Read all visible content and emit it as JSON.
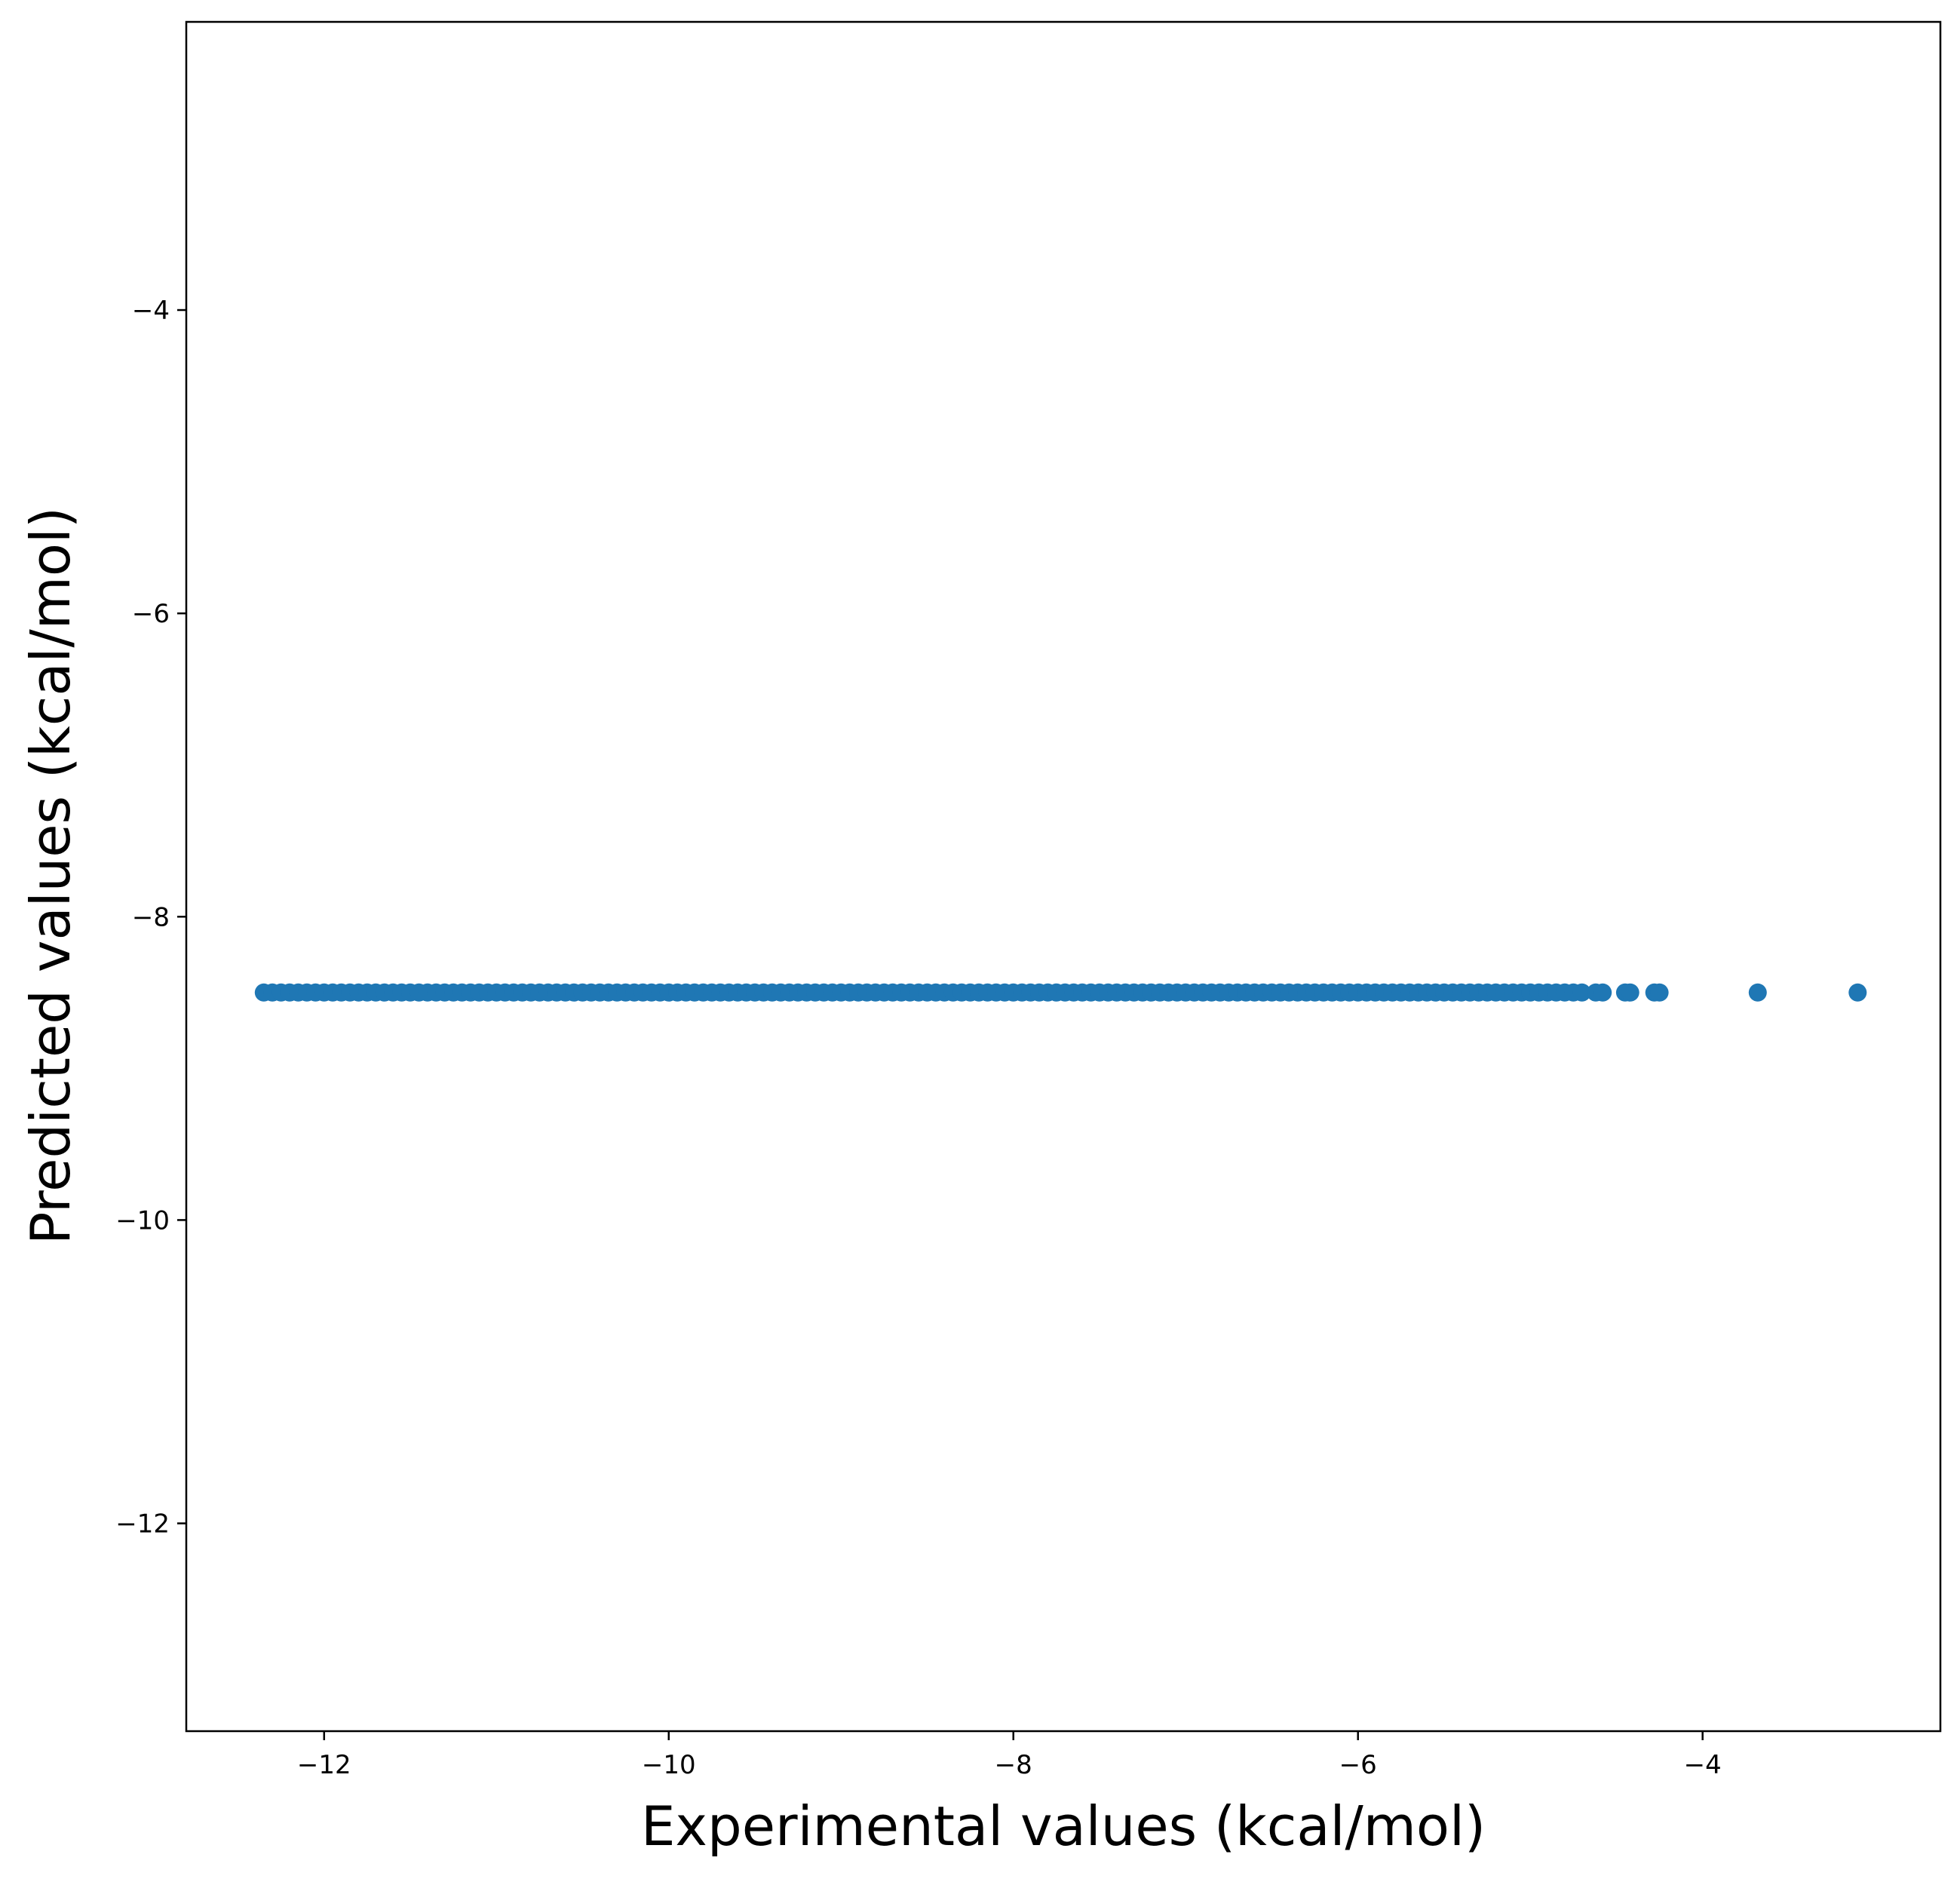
{
  "chart_data": {
    "type": "scatter",
    "title": "",
    "xlabel": "Experimental values (kcal/mol)",
    "ylabel": "Predicted values (kcal/mol)",
    "xlim": [
      -12.8,
      -2.62
    ],
    "ylim": [
      -13.37,
      -2.1
    ],
    "x_ticks": [
      -12,
      -10,
      -8,
      -6,
      -4
    ],
    "x_tick_labels": [
      "−12",
      "−10",
      "−8",
      "−6",
      "−4"
    ],
    "y_ticks": [
      -12,
      -10,
      -8,
      -6,
      -4
    ],
    "y_tick_labels": [
      "−12",
      "−10",
      "−8",
      "−6",
      "−4"
    ],
    "grid": false,
    "legend": false,
    "marker_color": "#1f77b4",
    "series": [
      {
        "x": [
          -12.35,
          -12.3,
          -12.25,
          -12.2,
          -12.15,
          -12.1,
          -12.05,
          -12.0,
          -11.95,
          -11.9,
          -11.85,
          -11.8,
          -11.75,
          -11.7,
          -11.65,
          -11.6,
          -11.55,
          -11.5,
          -11.45,
          -11.4,
          -11.35,
          -11.3,
          -11.25,
          -11.2,
          -11.15,
          -11.1,
          -11.05,
          -11.0,
          -10.95,
          -10.9,
          -10.85,
          -10.8,
          -10.75,
          -10.7,
          -10.65,
          -10.6,
          -10.55,
          -10.5,
          -10.45,
          -10.4,
          -10.35,
          -10.3,
          -10.25,
          -10.2,
          -10.15,
          -10.1,
          -10.05,
          -10.0,
          -9.95,
          -9.9,
          -9.85,
          -9.8,
          -9.75,
          -9.7,
          -9.65,
          -9.6,
          -9.55,
          -9.5,
          -9.45,
          -9.4,
          -9.35,
          -9.3,
          -9.25,
          -9.2,
          -9.15,
          -9.1,
          -9.05,
          -9.0,
          -8.95,
          -8.9,
          -8.85,
          -8.8,
          -8.75,
          -8.7,
          -8.65,
          -8.6,
          -8.55,
          -8.5,
          -8.45,
          -8.4,
          -8.35,
          -8.3,
          -8.25,
          -8.2,
          -8.15,
          -8.1,
          -8.05,
          -8.0,
          -7.95,
          -7.9,
          -7.85,
          -7.8,
          -7.75,
          -7.7,
          -7.65,
          -7.6,
          -7.55,
          -7.5,
          -7.45,
          -7.4,
          -7.35,
          -7.3,
          -7.25,
          -7.2,
          -7.15,
          -7.1,
          -7.05,
          -7.0,
          -6.95,
          -6.9,
          -6.85,
          -6.8,
          -6.75,
          -6.7,
          -6.65,
          -6.6,
          -6.55,
          -6.5,
          -6.45,
          -6.4,
          -6.35,
          -6.3,
          -6.25,
          -6.2,
          -6.15,
          -6.1,
          -6.05,
          -6.0,
          -5.95,
          -5.9,
          -5.85,
          -5.8,
          -5.75,
          -5.7,
          -5.65,
          -5.6,
          -5.55,
          -5.5,
          -5.45,
          -5.4,
          -5.35,
          -5.3,
          -5.25,
          -5.2,
          -5.15,
          -5.1,
          -5.05,
          -5.0,
          -4.95,
          -4.9,
          -4.85,
          -4.8,
          -4.75,
          -4.7,
          -4.62,
          -4.58,
          -4.45,
          -4.42,
          -4.28,
          -4.25,
          -3.68,
          -3.1
        ],
        "y": [
          -8.5,
          -8.5,
          -8.5,
          -8.5,
          -8.5,
          -8.5,
          -8.5,
          -8.5,
          -8.5,
          -8.5,
          -8.5,
          -8.5,
          -8.5,
          -8.5,
          -8.5,
          -8.5,
          -8.5,
          -8.5,
          -8.5,
          -8.5,
          -8.5,
          -8.5,
          -8.5,
          -8.5,
          -8.5,
          -8.5,
          -8.5,
          -8.5,
          -8.5,
          -8.5,
          -8.5,
          -8.5,
          -8.5,
          -8.5,
          -8.5,
          -8.5,
          -8.5,
          -8.5,
          -8.5,
          -8.5,
          -8.5,
          -8.5,
          -8.5,
          -8.5,
          -8.5,
          -8.5,
          -8.5,
          -8.5,
          -8.5,
          -8.5,
          -8.5,
          -8.5,
          -8.5,
          -8.5,
          -8.5,
          -8.5,
          -8.5,
          -8.5,
          -8.5,
          -8.5,
          -8.5,
          -8.5,
          -8.5,
          -8.5,
          -8.5,
          -8.5,
          -8.5,
          -8.5,
          -8.5,
          -8.5,
          -8.5,
          -8.5,
          -8.5,
          -8.5,
          -8.5,
          -8.5,
          -8.5,
          -8.5,
          -8.5,
          -8.5,
          -8.5,
          -8.5,
          -8.5,
          -8.5,
          -8.5,
          -8.5,
          -8.5,
          -8.5,
          -8.5,
          -8.5,
          -8.5,
          -8.5,
          -8.5,
          -8.5,
          -8.5,
          -8.5,
          -8.5,
          -8.5,
          -8.5,
          -8.5,
          -8.5,
          -8.5,
          -8.5,
          -8.5,
          -8.5,
          -8.5,
          -8.5,
          -8.5,
          -8.5,
          -8.5,
          -8.5,
          -8.5,
          -8.5,
          -8.5,
          -8.5,
          -8.5,
          -8.5,
          -8.5,
          -8.5,
          -8.5,
          -8.5,
          -8.5,
          -8.5,
          -8.5,
          -8.5,
          -8.5,
          -8.5,
          -8.5,
          -8.5,
          -8.5,
          -8.5,
          -8.5,
          -8.5,
          -8.5,
          -8.5,
          -8.5,
          -8.5,
          -8.5,
          -8.5,
          -8.5,
          -8.5,
          -8.5,
          -8.5,
          -8.5,
          -8.5,
          -8.5,
          -8.5,
          -8.5,
          -8.5,
          -8.5,
          -8.5,
          -8.5,
          -8.5,
          -8.5,
          -8.5,
          -8.5,
          -8.5,
          -8.5,
          -8.5,
          -8.5,
          -8.5,
          -8.5
        ]
      }
    ]
  }
}
